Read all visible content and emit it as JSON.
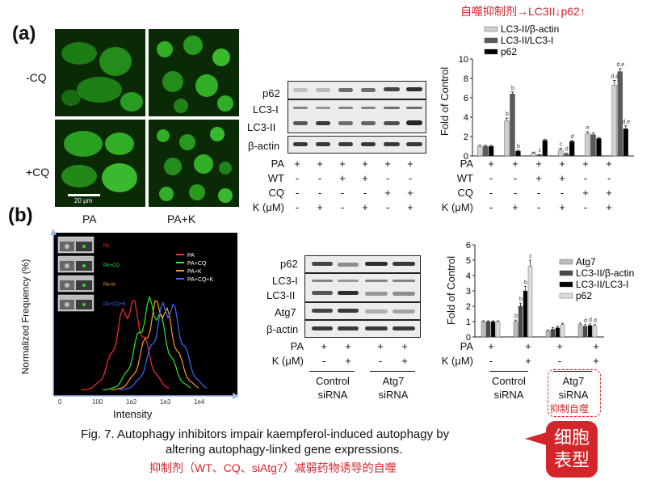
{
  "panel_a": {
    "label": "(a)",
    "row_labels": [
      "-CQ",
      "+CQ"
    ],
    "col_labels": [
      "PA",
      "PA+K"
    ],
    "scale_bar": "20 μm",
    "blot_labels": [
      "p62",
      "LC3-I",
      "LC3-II",
      "β-actin"
    ],
    "conditions": [
      {
        "name": "PA",
        "signs": [
          "+",
          "+",
          "+",
          "+",
          "+",
          "+"
        ]
      },
      {
        "name": "WT",
        "signs": [
          "-",
          "-",
          "+",
          "+",
          "-",
          "-"
        ]
      },
      {
        "name": "CQ",
        "signs": [
          "-",
          "-",
          "-",
          "-",
          "+",
          "+"
        ]
      },
      {
        "name": "K (μM)",
        "signs": [
          "-",
          "+",
          "-",
          "+",
          "-",
          "+"
        ]
      }
    ],
    "chart_note": "自噬抑制剂→LC3II↓p62↑"
  },
  "panel_b": {
    "label": "(b)",
    "blot_labels": [
      "p62",
      "LC3-I",
      "LC3-II",
      "Atg7",
      "β-actin"
    ],
    "conditions": [
      {
        "name": "PA",
        "signs": [
          "+",
          "+",
          "+",
          "+"
        ]
      },
      {
        "name": "K (μM)",
        "signs": [
          "-",
          "+",
          "-",
          "+"
        ]
      }
    ],
    "groups": [
      "Control siRNA",
      "Atg7 siRNA"
    ],
    "chart_conditions": [
      {
        "name": "PA",
        "signs": [
          "+",
          "+",
          "+",
          "+"
        ]
      },
      {
        "name": "K (μM)",
        "signs": [
          "-",
          "+",
          "-",
          "+"
        ]
      }
    ],
    "chart_groups": [
      "Control siRNA",
      "Atg7 siRNA"
    ],
    "chart_group_note": "抑制自噬",
    "flow": {
      "ylabel": "Normalized Frequency   (%)",
      "xlabel": "Intensity",
      "legend": [
        {
          "name": "PA",
          "color": "#ff2a2a"
        },
        {
          "name": "PA+CQ",
          "color": "#2ee82e"
        },
        {
          "name": "PA+K",
          "color": "#ff9a22"
        },
        {
          "name": "PA+CQ+K",
          "color": "#3a6bff"
        }
      ],
      "thumb_labels": [
        "PA",
        "PA+CQ",
        "PA+K",
        "PA+CQ+K"
      ],
      "ticks": [
        "0",
        "100",
        "1e2",
        "1e3",
        "1e4"
      ]
    }
  },
  "caption": {
    "line1": "Fig. 7. Autophagy inhibitors impair kaempferol-induced autophagy by",
    "line2": "altering autophagy-linked gene expressions.",
    "line3": "抑制剂（WT、CQ、siAtg7）减弱药物诱导的自噬",
    "bubble": "细胞表型"
  },
  "chart_data": [
    {
      "type": "bar",
      "ylabel": "Fold of Control",
      "ylim": [
        0,
        10
      ],
      "yticks": [
        0,
        2,
        4,
        6,
        8,
        10
      ],
      "categories": [
        "PA",
        "PA+K",
        "PA+WT",
        "PA+WT+K",
        "PA+CQ",
        "PA+CQ+K"
      ],
      "series": [
        {
          "name": "LC3-II/β-actin",
          "color": "#cfcfcf",
          "values": [
            1.0,
            3.6,
            0.3,
            0.6,
            2.3,
            7.3
          ],
          "errors": [
            0.1,
            0.3,
            0.1,
            0.2,
            0.2,
            0.5
          ]
        },
        {
          "name": "LC3-II/LC3-I",
          "color": "#5a5a5a",
          "values": [
            1.0,
            6.4,
            0.1,
            0.2,
            2.2,
            8.7
          ],
          "errors": [
            0.1,
            0.2,
            0.05,
            0.1,
            0.2,
            0.3
          ]
        },
        {
          "name": "p62",
          "color": "#000000",
          "values": [
            1.0,
            0.5,
            1.6,
            1.5,
            1.8,
            2.8
          ],
          "errors": [
            0.1,
            0.1,
            0.1,
            0.1,
            0.1,
            0.3
          ]
        }
      ],
      "annotations": [
        {
          "category": 1,
          "series": 0,
          "text": "b"
        },
        {
          "category": 1,
          "series": 1,
          "text": "b"
        },
        {
          "category": 1,
          "series": 2,
          "text": "b"
        },
        {
          "category": 2,
          "series": 1,
          "text": "c"
        },
        {
          "category": 3,
          "series": 0,
          "text": "c"
        },
        {
          "category": 3,
          "series": 1,
          "text": "d"
        },
        {
          "category": 3,
          "series": 2,
          "text": "d"
        },
        {
          "category": 4,
          "series": 0,
          "text": "e"
        },
        {
          "category": 5,
          "series": 0,
          "text": "d,e"
        },
        {
          "category": 5,
          "series": 1,
          "text": "d,e"
        },
        {
          "category": 5,
          "series": 2,
          "text": "d,e"
        }
      ]
    },
    {
      "type": "bar",
      "ylabel": "Fold of Control",
      "ylim": [
        0,
        6
      ],
      "yticks": [
        0,
        1,
        2,
        3,
        4,
        5,
        6
      ],
      "categories": [
        "Control siRNA PA",
        "Control siRNA PA+K",
        "Atg7 siRNA PA",
        "Atg7 siRNA PA+K"
      ],
      "series": [
        {
          "name": "Atg7",
          "color": "#bdbdbd",
          "values": [
            1.0,
            1.0,
            0.4,
            0.8
          ],
          "errors": [
            0.05,
            0.1,
            0.05,
            0.1
          ]
        },
        {
          "name": "LC3-II/β-actin",
          "color": "#4a4a4a",
          "values": [
            1.0,
            2.0,
            0.5,
            0.7
          ],
          "errors": [
            0.05,
            0.2,
            0.1,
            0.1
          ]
        },
        {
          "name": "LC3-II/LC3-I",
          "color": "#000000",
          "values": [
            1.0,
            3.0,
            0.6,
            0.75
          ],
          "errors": [
            0.05,
            0.3,
            0.1,
            0.1
          ]
        },
        {
          "name": "p62",
          "color": "#dddddd",
          "values": [
            1.0,
            4.6,
            0.8,
            0.7
          ],
          "errors": [
            0.05,
            0.4,
            0.1,
            0.1
          ]
        }
      ],
      "annotations": [
        {
          "category": 1,
          "series": 0,
          "text": "b"
        },
        {
          "category": 1,
          "series": 1,
          "text": "b"
        },
        {
          "category": 1,
          "series": 2,
          "text": "b"
        },
        {
          "category": 1,
          "series": 3,
          "text": "c"
        },
        {
          "category": 3,
          "series": 1,
          "text": "d"
        },
        {
          "category": 3,
          "series": 2,
          "text": "d"
        },
        {
          "category": 3,
          "series": 3,
          "text": "d"
        }
      ]
    }
  ]
}
